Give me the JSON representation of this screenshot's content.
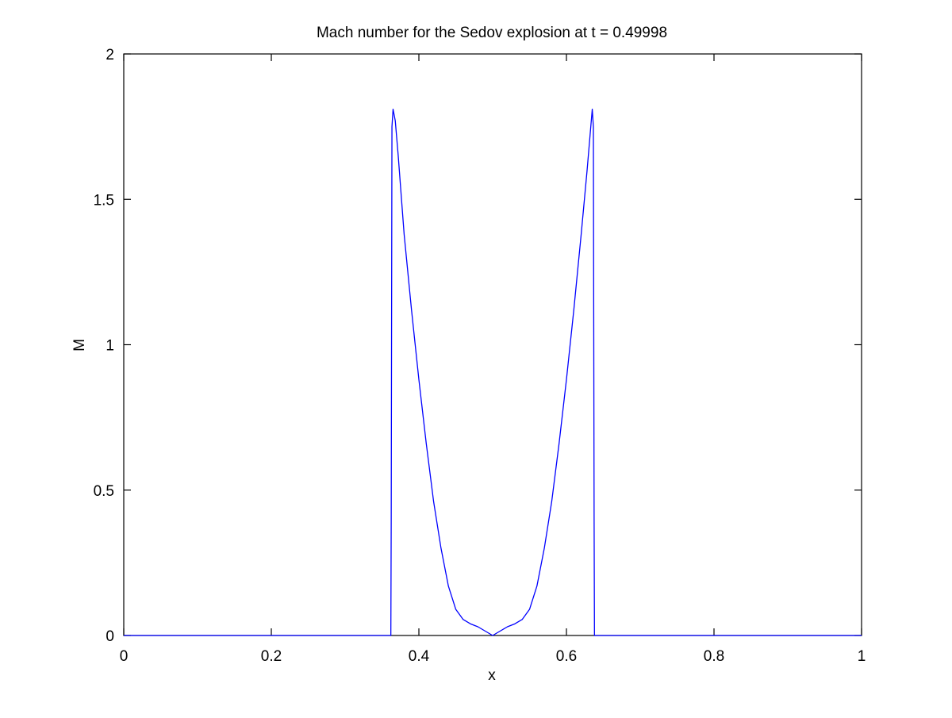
{
  "chart_data": {
    "type": "line",
    "title": "Mach number for the Sedov explosion at t = 0.49998",
    "xlabel": "x",
    "ylabel": "M",
    "xlim": [
      0,
      1
    ],
    "ylim": [
      0,
      2
    ],
    "xticks": [
      0,
      0.2,
      0.4,
      0.6,
      0.8,
      1
    ],
    "yticks": [
      0,
      0.5,
      1,
      1.5,
      2
    ],
    "xtick_labels": [
      "0",
      "0.2",
      "0.4",
      "0.6",
      "0.8",
      "1"
    ],
    "ytick_labels": [
      "0",
      "0.5",
      "1",
      "1.5",
      "2"
    ],
    "grid": false,
    "box": true,
    "series": [
      {
        "color": "#0000ff",
        "x": [
          0,
          0.1,
          0.2,
          0.3,
          0.36,
          0.362,
          0.3625,
          0.3635,
          0.365,
          0.368,
          0.372,
          0.38,
          0.39,
          0.4,
          0.41,
          0.42,
          0.43,
          0.44,
          0.45,
          0.46,
          0.47,
          0.48,
          0.49,
          0.5,
          0.51,
          0.52,
          0.53,
          0.54,
          0.55,
          0.56,
          0.57,
          0.58,
          0.59,
          0.6,
          0.61,
          0.62,
          0.628,
          0.632,
          0.635,
          0.6365,
          0.6375,
          0.638,
          0.64,
          0.7,
          0.8,
          0.9,
          1
        ],
        "y": [
          0,
          0,
          0,
          0,
          0,
          0,
          0.4,
          1.75,
          1.81,
          1.77,
          1.65,
          1.38,
          1.12,
          0.88,
          0.66,
          0.46,
          0.3,
          0.17,
          0.09,
          0.055,
          0.04,
          0.03,
          0.015,
          0,
          0.015,
          0.03,
          0.04,
          0.055,
          0.09,
          0.17,
          0.3,
          0.46,
          0.66,
          0.88,
          1.12,
          1.38,
          1.6,
          1.72,
          1.81,
          1.75,
          0.4,
          0,
          0,
          0,
          0,
          0,
          0
        ]
      }
    ]
  }
}
